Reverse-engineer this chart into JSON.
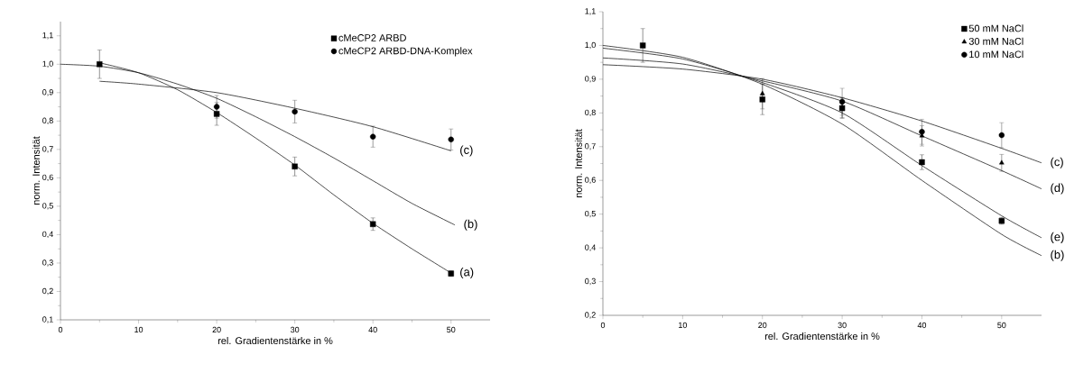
{
  "chart_data": [
    {
      "type": "scatter",
      "xlabel": "rel. Gradientenstärke in %",
      "ylabel": "norm. Intensität",
      "xlim": [
        0,
        55
      ],
      "ylim": [
        0.1,
        1.15
      ],
      "xticks": [
        0,
        10,
        20,
        30,
        40,
        50
      ],
      "yticks": [
        {
          "value": 0.1,
          "label": "0,1"
        },
        {
          "value": 0.2,
          "label": "0,2"
        },
        {
          "value": 0.3,
          "label": "0,3"
        },
        {
          "value": 0.4,
          "label": "0,4"
        },
        {
          "value": 0.5,
          "label": "0,5"
        },
        {
          "value": 0.6,
          "label": "0,6"
        },
        {
          "value": 0.7,
          "label": "0,7"
        },
        {
          "value": 0.8,
          "label": "0,8"
        },
        {
          "value": 0.9,
          "label": "0,9"
        },
        {
          "value": 1.0,
          "label": "1,0"
        },
        {
          "value": 1.1,
          "label": "1,1"
        }
      ],
      "legend": "top right",
      "series": [
        {
          "name": "cMeCP2 ARBD",
          "color": "#000000",
          "marker": "square",
          "x": [
            5,
            20,
            30,
            40,
            50
          ],
          "values": [
            1.0,
            0.825,
            0.64,
            0.437,
            0.263
          ],
          "errors": [
            0.05,
            0.04,
            0.033,
            0.022,
            0.01
          ]
        },
        {
          "name": "cMeCP2 ARBD-DNA-Komplex",
          "color": "#000000",
          "marker": "circle",
          "x": [
            20,
            30,
            40,
            50
          ],
          "values": [
            0.85,
            0.833,
            0.745,
            0.735
          ],
          "errors": [
            0.04,
            0.04,
            0.037,
            0.037
          ]
        },
        {
          "type": "line",
          "color": "#000000",
          "marker": "none",
          "x": [
            5,
            10,
            15,
            20,
            25,
            30,
            35,
            40,
            45,
            50
          ],
          "values": [
            1.005,
            0.97,
            0.91,
            0.83,
            0.74,
            0.645,
            0.54,
            0.44,
            0.35,
            0.265
          ]
        },
        {
          "type": "line",
          "color": "#000000",
          "marker": "none",
          "x": [
            0,
            5,
            10,
            15,
            20,
            25,
            30,
            35,
            40,
            45,
            50.5
          ],
          "values": [
            1.0,
            0.993,
            0.97,
            0.93,
            0.88,
            0.815,
            0.745,
            0.67,
            0.59,
            0.51,
            0.434
          ]
        },
        {
          "type": "line",
          "color": "#000000",
          "marker": "none",
          "x": [
            5,
            10,
            20,
            30,
            40,
            50
          ],
          "values": [
            0.94,
            0.93,
            0.9,
            0.845,
            0.78,
            0.695
          ]
        }
      ],
      "annotations": [
        "(a)",
        "(b)",
        "(c)"
      ]
    },
    {
      "type": "scatter",
      "xlabel": "rel. Gradientenstärke in %",
      "ylabel": "norm. Intensität",
      "xlim": [
        0,
        55
      ],
      "ylim": [
        0.2,
        1.1
      ],
      "xticks": [
        0,
        10,
        20,
        30,
        40,
        50
      ],
      "yticks": [
        {
          "value": 0.2,
          "label": "0,2"
        },
        {
          "value": 0.3,
          "label": "0,3"
        },
        {
          "value": 0.4,
          "label": "0,4"
        },
        {
          "value": 0.5,
          "label": "0,5"
        },
        {
          "value": 0.6,
          "label": "0,6"
        },
        {
          "value": 0.7,
          "label": "0,7"
        },
        {
          "value": 0.8,
          "label": "0,8"
        },
        {
          "value": 0.9,
          "label": "0,9"
        },
        {
          "value": 1.0,
          "label": "1,0"
        },
        {
          "value": 1.1,
          "label": "1,1"
        }
      ],
      "legend": "top right",
      "series": [
        {
          "name": "50 mM NaCl",
          "color": "#000000",
          "marker": "square",
          "x": [
            5,
            20,
            30,
            40,
            50
          ],
          "values": [
            1.0,
            0.84,
            0.814,
            0.654,
            0.48
          ],
          "errors": [
            0.05,
            0.045,
            0.03,
            0.022,
            0.01
          ]
        },
        {
          "name": "30 mM NaCl",
          "color": "#000000",
          "marker": "triangle",
          "x": [
            20,
            30,
            40,
            50
          ],
          "values": [
            0.857,
            0.816,
            0.732,
            0.652
          ],
          "errors": [
            0.045,
            0.03,
            0.03,
            0.025
          ]
        },
        {
          "name": "10 mM NaCl",
          "color": "#000000",
          "marker": "circle",
          "x": [
            30,
            40,
            50
          ],
          "values": [
            0.833,
            0.744,
            0.734
          ],
          "errors": [
            0.04,
            0.037,
            0.037
          ]
        },
        {
          "type": "line",
          "color": "#000000",
          "marker": "none",
          "x": [
            0,
            10,
            20,
            30,
            40,
            50,
            55
          ],
          "values": [
            0.943,
            0.93,
            0.9,
            0.845,
            0.776,
            0.695,
            0.652
          ]
        },
        {
          "type": "line",
          "color": "#000000",
          "marker": "none",
          "x": [
            0,
            10,
            20,
            30,
            40,
            50,
            55
          ],
          "values": [
            0.963,
            0.945,
            0.895,
            0.835,
            0.732,
            0.629,
            0.575
          ]
        },
        {
          "type": "line",
          "color": "#000000",
          "marker": "none",
          "x": [
            0,
            10,
            20,
            30,
            40,
            50,
            55
          ],
          "values": [
            0.992,
            0.96,
            0.89,
            0.8,
            0.644,
            0.495,
            0.43
          ]
        },
        {
          "type": "line",
          "color": "#000000",
          "marker": "none",
          "x": [
            0,
            10,
            20,
            30,
            40,
            50,
            55
          ],
          "values": [
            1.0,
            0.965,
            0.885,
            0.767,
            0.6,
            0.44,
            0.377
          ]
        }
      ],
      "annotations": [
        "(c)",
        "(d)",
        "(e)",
        "(b)"
      ]
    }
  ]
}
